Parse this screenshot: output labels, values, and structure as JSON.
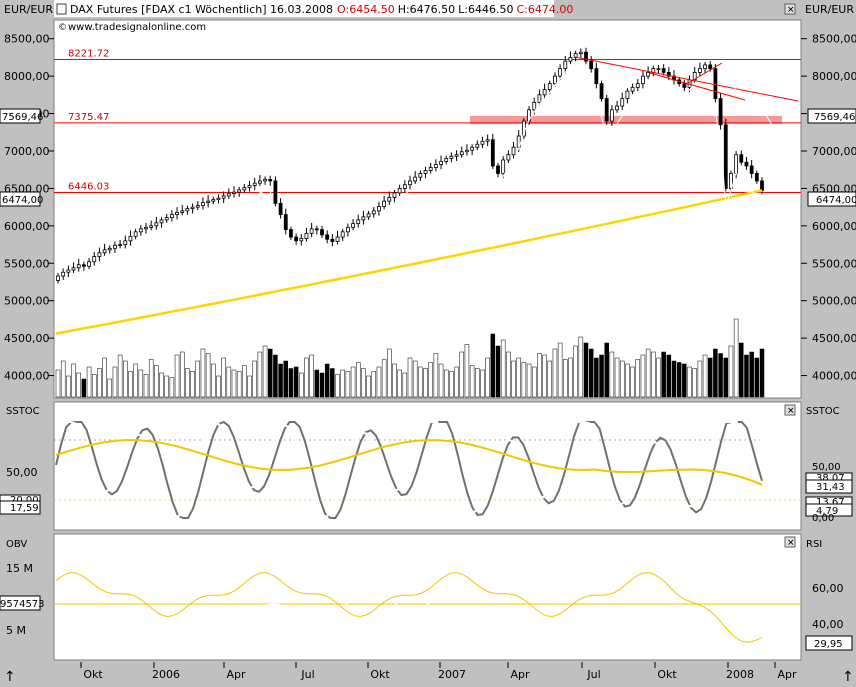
{
  "header": {
    "left_unit": "EUR/EUR",
    "right_unit": "EUR/EUR",
    "instrument": "DAX Futures [FDAX c1  Wöchentlich] 16.03.2008",
    "open": "O:6454.50",
    "high": "H:6476.50",
    "low": "L:6446.50",
    "close": "C:6474.00",
    "watermark": "www.tradesignalonline.com"
  },
  "colors": {
    "background": "#c0c0c0",
    "panel": "#ffffff",
    "level_line": "#ff0000",
    "sma": "#ffd400",
    "volume_up": "#ffffff",
    "volume_down": "#000000",
    "stoch_fast": "#707070",
    "stoch_slow": "#ffffff",
    "stoch_slow_avg": "#f0c800"
  },
  "x_axis": {
    "labels": [
      "Okt",
      "2006",
      "Apr",
      "Jul",
      "Okt",
      "2007",
      "Apr",
      "Jul",
      "Okt",
      "2008",
      "Apr"
    ]
  },
  "chart_data": [
    {
      "type": "candlestick",
      "panel": "price",
      "frequency": "weekly",
      "x_range": [
        "2005-08",
        "2008-04"
      ],
      "y_range": [
        3700,
        8750
      ],
      "y_ticks": [
        "8500,00",
        "8000,00",
        "7500,00",
        "7000,00",
        "6500,00",
        "6000,00",
        "5500,00",
        "5000,00",
        "4500,00",
        "4000,00"
      ],
      "close_labels": [
        "6474,00",
        "6474,00"
      ],
      "left_edge_label": "7569,46",
      "right_edge_label": "7569,46",
      "levels": [
        {
          "label": "8221.72",
          "value": 8221.72
        },
        {
          "label": "7375.47",
          "value": 7375.47
        },
        {
          "label": "6446.03",
          "value": 6446.03
        }
      ],
      "closes": [
        5330,
        5380,
        5410,
        5440,
        5480,
        5460,
        5520,
        5590,
        5640,
        5680,
        5700,
        5740,
        5750,
        5800,
        5860,
        5920,
        5960,
        5980,
        6000,
        6040,
        6080,
        6110,
        6150,
        6180,
        6200,
        6230,
        6250,
        6270,
        6310,
        6330,
        6350,
        6370,
        6400,
        6430,
        6450,
        6480,
        6510,
        6540,
        6570,
        6600,
        6620,
        6600,
        6300,
        6150,
        5950,
        5850,
        5800,
        5830,
        5900,
        5960,
        5950,
        5880,
        5820,
        5790,
        5850,
        5920,
        5980,
        6030,
        6080,
        6120,
        6160,
        6200,
        6260,
        6330,
        6380,
        6440,
        6500,
        6550,
        6600,
        6650,
        6700,
        6740,
        6780,
        6820,
        6860,
        6900,
        6930,
        6950,
        6990,
        7010,
        7050,
        7090,
        7130,
        7150,
        6800,
        6700,
        6880,
        6950,
        7050,
        7200,
        7400,
        7550,
        7650,
        7750,
        7820,
        7900,
        8000,
        8100,
        8200,
        8250,
        8300,
        8320,
        8200,
        8100,
        7900,
        7700,
        7400,
        7550,
        7600,
        7700,
        7800,
        7850,
        7900,
        8000,
        8050,
        8100,
        8100,
        8050,
        8000,
        7950,
        7900,
        7850,
        7950,
        8050,
        8100,
        8150,
        8100,
        7700,
        7350,
        6500,
        6700,
        6950,
        6850,
        6800,
        6700,
        6600,
        6474
      ],
      "sma_200_start": 4560,
      "sma_200_end": 6474,
      "volume": {
        "y_ticks": [
          "4500,00",
          "4000,00"
        ],
        "bars": [
          90,
          120,
          70,
          110,
          80,
          60,
          100,
          75,
          95,
          130,
          60,
          100,
          140,
          120,
          85,
          110,
          90,
          75,
          125,
          105,
          80,
          70,
          65,
          140,
          150,
          95,
          85,
          120,
          160,
          145,
          110,
          70,
          130,
          100,
          90,
          85,
          105,
          70,
          120,
          150,
          170,
          160,
          140,
          110,
          120,
          95,
          100,
          80,
          130,
          140,
          90,
          80,
          110,
          95,
          75,
          90,
          85,
          100,
          115,
          95,
          70,
          85,
          100,
          125,
          160,
          110,
          90,
          80,
          130,
          120,
          100,
          95,
          115,
          145,
          110,
          90,
          85,
          100,
          150,
          175,
          105,
          95,
          90,
          130,
          210,
          170,
          190,
          150,
          120,
          130,
          115,
          110,
          100,
          145,
          140,
          120,
          160,
          180,
          125,
          130,
          170,
          200,
          180,
          160,
          130,
          140,
          180,
          150,
          130,
          120,
          110,
          100,
          125,
          140,
          160,
          150,
          130,
          150,
          140,
          120,
          115,
          110,
          100,
          95,
          120,
          140,
          130,
          160,
          145,
          130,
          170,
          260,
          180,
          140,
          150,
          130,
          160
        ]
      }
    },
    {
      "type": "line",
      "panel": "SSTOC",
      "y_range": [
        0,
        100
      ],
      "y_ticks": [
        "50,00"
      ],
      "left_value_labels": [
        "20,00",
        "17,59"
      ],
      "right_labels": [
        "50,00",
        "38,07",
        "31,43",
        "13,67",
        "4,79",
        "0,00"
      ],
      "reference_lines": [
        20,
        80
      ]
    },
    {
      "type": "line",
      "panel": "OBV / RSI",
      "left_title": "OBV",
      "right_title": "RSI",
      "left_ticks": [
        "15 M",
        "5 M"
      ],
      "left_value_label": "9574573",
      "right_ticks": [
        "60,00",
        "40,00"
      ],
      "right_value_label": "29,95",
      "reference_line": 50
    }
  ]
}
